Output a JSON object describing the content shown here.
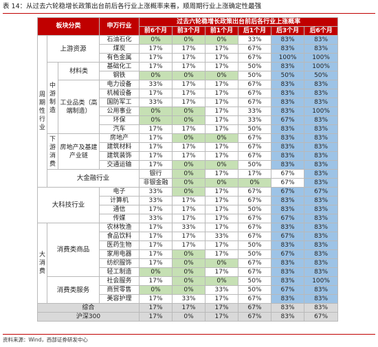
{
  "title": "表 14：从过去六轮稳增长政策出台前后各行业上涨概率来看，顺周期行业上涨确定性最强",
  "source": "资料来源：Wind，西部证券研发中心",
  "header": {
    "sector_col": "板块分类",
    "industry_col": "申万行业",
    "span_title": "过去六轮稳增长政策出台前后各行业上涨概率",
    "periods": [
      "前6个月",
      "前3个月",
      "前1个月",
      "后1个月",
      "后3个月",
      "后6个月"
    ]
  },
  "groups": {
    "cyclical": "周期性行业",
    "upstream": "上游资源",
    "materials": "材料类",
    "midstream": "中游制造",
    "industrial": "工业品类（高端制造）",
    "downstream": "下游消费",
    "realestate": "房地产及基建产业链",
    "finance": "大金融行业",
    "tech": "大科技行业",
    "consumer": "大消费",
    "consumer_goods": "消费类商品",
    "consumer_services": "消费类服务"
  },
  "rows": [
    {
      "name": "石油石化",
      "v": [
        "0%",
        "0%",
        "0%",
        "33%",
        "83%",
        "83%"
      ]
    },
    {
      "name": "煤炭",
      "v": [
        "17%",
        "17%",
        "17%",
        "67%",
        "83%",
        "83%"
      ]
    },
    {
      "name": "有色金属",
      "v": [
        "17%",
        "17%",
        "17%",
        "67%",
        "100%",
        "100%"
      ]
    },
    {
      "name": "基础化工",
      "v": [
        "17%",
        "17%",
        "17%",
        "50%",
        "83%",
        "100%"
      ]
    },
    {
      "name": "钢铁",
      "v": [
        "0%",
        "0%",
        "0%",
        "50%",
        "50%",
        "50%"
      ]
    },
    {
      "name": "电力设备",
      "v": [
        "33%",
        "17%",
        "17%",
        "67%",
        "83%",
        "83%"
      ]
    },
    {
      "name": "机械设备",
      "v": [
        "17%",
        "17%",
        "17%",
        "67%",
        "83%",
        "83%"
      ]
    },
    {
      "name": "国防军工",
      "v": [
        "33%",
        "17%",
        "17%",
        "67%",
        "83%",
        "83%"
      ]
    },
    {
      "name": "公用事业",
      "v": [
        "0%",
        "0%",
        "17%",
        "33%",
        "83%",
        "100%"
      ]
    },
    {
      "name": "环保",
      "v": [
        "0%",
        "0%",
        "17%",
        "33%",
        "67%",
        "83%"
      ]
    },
    {
      "name": "汽车",
      "v": [
        "17%",
        "17%",
        "17%",
        "50%",
        "83%",
        "83%"
      ]
    },
    {
      "name": "房地产",
      "v": [
        "17%",
        "0%",
        "0%",
        "67%",
        "83%",
        "83%"
      ]
    },
    {
      "name": "建筑材料",
      "v": [
        "17%",
        "17%",
        "17%",
        "67%",
        "83%",
        "83%"
      ]
    },
    {
      "name": "建筑装饰",
      "v": [
        "17%",
        "17%",
        "17%",
        "67%",
        "83%",
        "83%"
      ]
    },
    {
      "name": "交通运输",
      "v": [
        "17%",
        "0%",
        "0%",
        "50%",
        "83%",
        "83%"
      ]
    },
    {
      "name": "银行",
      "v": [
        "0%",
        "17%",
        "17%",
        "67%",
        "83%",
        "83%"
      ]
    },
    {
      "name": "非银金融",
      "v": [
        "0%",
        "0%",
        "0%",
        "67%",
        "83%",
        "83%"
      ]
    },
    {
      "name": "电子",
      "v": [
        "33%",
        "0%",
        "17%",
        "67%",
        "67%",
        "67%"
      ]
    },
    {
      "name": "计算机",
      "v": [
        "33%",
        "17%",
        "17%",
        "67%",
        "83%",
        "83%"
      ]
    },
    {
      "name": "通信",
      "v": [
        "17%",
        "17%",
        "17%",
        "50%",
        "83%",
        "83%"
      ]
    },
    {
      "name": "传媒",
      "v": [
        "33%",
        "17%",
        "17%",
        "67%",
        "67%",
        "83%"
      ]
    },
    {
      "name": "农林牧渔",
      "v": [
        "17%",
        "33%",
        "17%",
        "67%",
        "83%",
        "83%"
      ]
    },
    {
      "name": "食品饮料",
      "v": [
        "17%",
        "17%",
        "33%",
        "67%",
        "67%",
        "83%"
      ]
    },
    {
      "name": "医药生物",
      "v": [
        "17%",
        "17%",
        "17%",
        "50%",
        "83%",
        "83%"
      ]
    },
    {
      "name": "家用电器",
      "v": [
        "17%",
        "0%",
        "17%",
        "50%",
        "67%",
        "83%"
      ]
    },
    {
      "name": "纺织服饰",
      "v": [
        "17%",
        "0%",
        "0%",
        "67%",
        "83%",
        "83%"
      ]
    },
    {
      "name": "轻工制造",
      "v": [
        "0%",
        "0%",
        "17%",
        "67%",
        "83%",
        "83%"
      ]
    },
    {
      "name": "社会服务",
      "v": [
        "17%",
        "0%",
        "0%",
        "50%",
        "83%",
        "100%"
      ]
    },
    {
      "name": "商贸零售",
      "v": [
        "0%",
        "0%",
        "33%",
        "50%",
        "67%",
        "83%"
      ]
    },
    {
      "name": "美容护理",
      "v": [
        "17%",
        "33%",
        "17%",
        "67%",
        "83%",
        "83%"
      ]
    },
    {
      "name": "综合",
      "v": [
        "17%",
        "17%",
        "17%",
        "67%",
        "83%",
        "83%"
      ]
    },
    {
      "name": "沪深300",
      "v": [
        "17%",
        "0%",
        "17%",
        "67%",
        "83%",
        "67%"
      ]
    }
  ],
  "colors": {
    "header": "#c00000",
    "before": "#c6e0b4",
    "after": "#9dc3e6",
    "total": "#d9d9d9"
  }
}
